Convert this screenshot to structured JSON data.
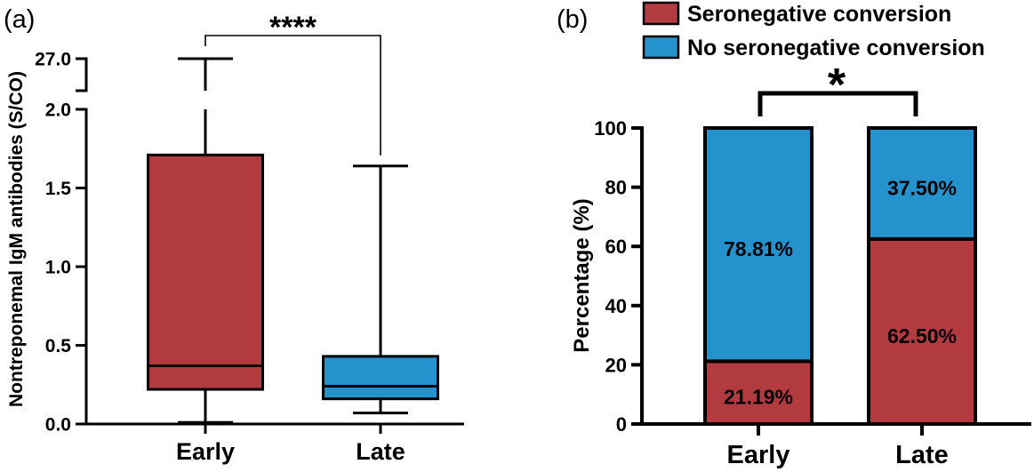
{
  "chart_data": [
    {
      "type": "box",
      "panel_label": "(a)",
      "ylabel": "Nontreponemal IgM antibodies (S/CO)",
      "categories": [
        "Early",
        "Late"
      ],
      "boxes": [
        {
          "min": 0.01,
          "q1": 0.22,
          "median": 0.37,
          "q3": 1.71,
          "max": 27.0,
          "color": "#B23B40"
        },
        {
          "min": 0.07,
          "q1": 0.16,
          "median": 0.24,
          "q3": 0.43,
          "max": 1.64,
          "color": "#2492CC"
        }
      ],
      "ylim": [
        0,
        27.0
      ],
      "yticks": [
        "0.0",
        "0.5",
        "1.0",
        "1.5",
        "2.0"
      ],
      "y_break": {
        "lower_segment": [
          0,
          2.0
        ],
        "upper_ticks": [
          "27.0"
        ]
      },
      "significance": "****",
      "grid": false
    },
    {
      "type": "bar",
      "stacked": true,
      "panel_label": "(b)",
      "ylabel": "Percentage (%)",
      "categories": [
        "Early",
        "Late"
      ],
      "series": [
        {
          "name": "Seronegative conversion",
          "values": [
            21.19,
            62.5
          ],
          "labels": [
            "21.19%",
            "62.50%"
          ],
          "color": "#B23B40"
        },
        {
          "name": "No seronegative conversion",
          "values": [
            78.81,
            37.5
          ],
          "labels": [
            "78.81%",
            "37.50%"
          ],
          "color": "#2492CC"
        }
      ],
      "ylim": [
        0,
        100
      ],
      "yticks": [
        "0",
        "20",
        "40",
        "60",
        "80",
        "100"
      ],
      "legend": "top",
      "significance": "*",
      "grid": false
    }
  ]
}
